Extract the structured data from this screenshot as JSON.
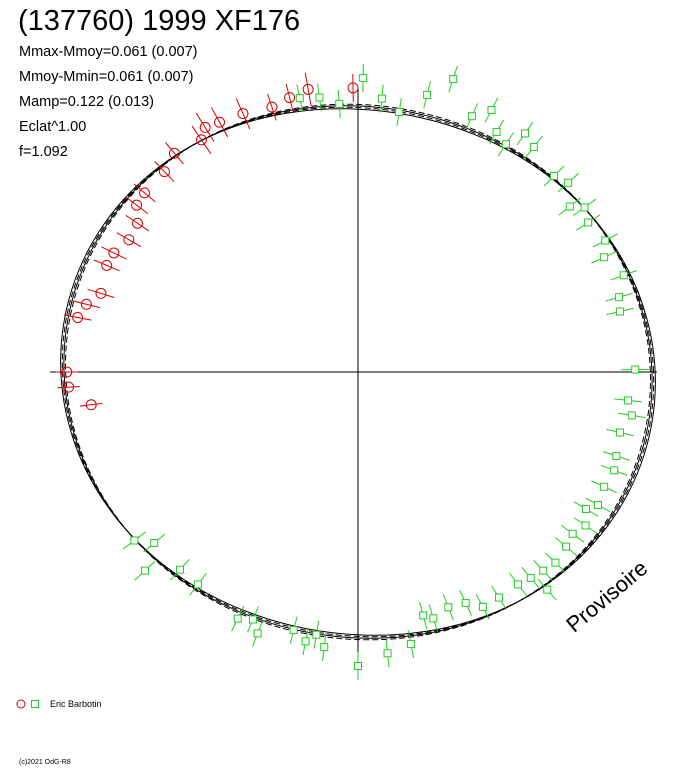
{
  "title": "(137760) 1999 XF176",
  "stats": [
    "Mmax-Mmoy=0.061 (0.007)",
    "Mmoy-Mmin=0.061 (0.007)",
    "Mamp=0.122 (0.013)",
    "Eclat^1.00",
    "f=1.092"
  ],
  "watermark": "Provisoire",
  "legend": {
    "label": "Eric Barbotin"
  },
  "footer": "(c)2021 OdG-R8",
  "colors": {
    "red": "#d40000",
    "green": "#22cc22",
    "axis": "#000000"
  },
  "chart_data": {
    "type": "scatter",
    "coordinate_system": "polar",
    "title": "(137760) 1999 XF176",
    "angle_unit": "deg",
    "model_curves": [
      {
        "style": "solid",
        "amplitude": 0.061
      },
      {
        "style": "dashed",
        "amplitude": 0.054
      },
      {
        "style": "dashed",
        "amplitude": 0.068
      },
      {
        "style": "solid",
        "amplitude": 0.075
      }
    ],
    "series": [
      {
        "name": "Eric Barbotin",
        "marker": "circle",
        "color": "#d40000",
        "points": [
          {
            "a": 91,
            "r": 1.015,
            "e": 0.05
          },
          {
            "a": 100,
            "r": 1.025,
            "e": 0.06
          },
          {
            "a": 104,
            "r": 1.01,
            "e": 0.05
          },
          {
            "a": 108,
            "r": 0.995,
            "e": 0.05
          },
          {
            "a": 114,
            "r": 1.01,
            "e": 0.06
          },
          {
            "a": 119,
            "r": 1.02,
            "e": 0.06
          },
          {
            "a": 122,
            "r": 1.03,
            "e": 0.06
          },
          {
            "a": 124,
            "r": 1.0,
            "e": 0.06
          },
          {
            "a": 130,
            "r": 1.02,
            "e": 0.05
          },
          {
            "a": 134,
            "r": 0.995,
            "e": 0.05
          },
          {
            "a": 140,
            "r": 0.995,
            "e": 0.05
          },
          {
            "a": 143,
            "r": 0.99,
            "e": 0.05
          },
          {
            "a": 146,
            "r": 0.95,
            "e": 0.05
          },
          {
            "a": 150,
            "r": 0.945,
            "e": 0.05
          },
          {
            "a": 154,
            "r": 0.97,
            "e": 0.05
          },
          {
            "a": 157,
            "r": 0.975,
            "e": 0.05
          },
          {
            "a": 163,
            "r": 0.96,
            "e": 0.05
          },
          {
            "a": 166,
            "r": 1.0,
            "e": 0.05
          },
          {
            "a": 169,
            "r": 1.02,
            "e": 0.05
          },
          {
            "a": 180,
            "r": 1.04,
            "e": 0.04
          },
          {
            "a": 183,
            "r": 1.035,
            "e": 0.04
          },
          {
            "a": 187,
            "r": 0.96,
            "e": 0.04
          }
        ]
      },
      {
        "name": "Eric Barbotin",
        "marker": "square",
        "color": "#22cc22",
        "points": [
          {
            "a": 72,
            "r": 1.1,
            "e": 0.05
          },
          {
            "a": 76,
            "r": 1.02,
            "e": 0.05
          },
          {
            "a": 81,
            "r": 0.94,
            "e": 0.05
          },
          {
            "a": 85,
            "r": 0.98,
            "e": 0.05
          },
          {
            "a": 89,
            "r": 1.05,
            "e": 0.05
          },
          {
            "a": 94,
            "r": 0.96,
            "e": 0.05
          },
          {
            "a": 98,
            "r": 0.99,
            "e": 0.05
          },
          {
            "a": 102,
            "r": 1.0,
            "e": 0.05
          },
          {
            "a": 63,
            "r": 1.05,
            "e": 0.05
          },
          {
            "a": 66,
            "r": 1.0,
            "e": 0.05
          },
          {
            "a": 60,
            "r": 0.99,
            "e": 0.05
          },
          {
            "a": 55,
            "r": 1.04,
            "e": 0.05
          },
          {
            "a": 57,
            "r": 0.97,
            "e": 0.05
          },
          {
            "a": 52,
            "r": 1.02,
            "e": 0.05
          },
          {
            "a": 45,
            "r": 0.99,
            "e": 0.05
          },
          {
            "a": 42,
            "r": 1.01,
            "e": 0.05
          },
          {
            "a": 38,
            "r": 0.96,
            "e": 0.05
          },
          {
            "a": 36,
            "r": 1.0,
            "e": 0.05
          },
          {
            "a": 33,
            "r": 0.98,
            "e": 0.05
          },
          {
            "a": 28,
            "r": 1.0,
            "e": 0.05
          },
          {
            "a": 25,
            "r": 0.97,
            "e": 0.05
          },
          {
            "a": 20,
            "r": 1.01,
            "e": 0.05
          },
          {
            "a": 16,
            "r": 0.97,
            "e": 0.05
          },
          {
            "a": 13,
            "r": 0.96,
            "e": 0.05
          },
          {
            "a": 0.5,
            "r": 0.99,
            "e": 0.05
          },
          {
            "a": -6,
            "r": 0.97,
            "e": 0.05
          },
          {
            "a": -9,
            "r": 0.99,
            "e": 0.05
          },
          {
            "a": -13,
            "r": 0.96,
            "e": 0.05
          },
          {
            "a": -18,
            "r": 0.97,
            "e": 0.05
          },
          {
            "a": -21,
            "r": 0.98,
            "e": 0.05
          },
          {
            "a": -25,
            "r": 0.97,
            "e": 0.05
          },
          {
            "a": -29,
            "r": 0.98,
            "e": 0.05
          },
          {
            "a": -31,
            "r": 0.95,
            "e": 0.05
          },
          {
            "a": -34,
            "r": 0.98,
            "e": 0.05
          },
          {
            "a": -37,
            "r": 0.96,
            "e": 0.05
          },
          {
            "a": -40,
            "r": 0.97,
            "e": 0.05
          },
          {
            "a": -44,
            "r": 0.98,
            "e": 0.05
          },
          {
            "a": -47,
            "r": 0.97,
            "e": 0.05
          },
          {
            "a": -50,
            "r": 0.96,
            "e": 0.05
          },
          {
            "a": -49,
            "r": 1.03,
            "e": 0.05
          },
          {
            "a": -53,
            "r": 0.95,
            "e": 0.05
          },
          {
            "a": -58,
            "r": 0.95,
            "e": 0.05
          },
          {
            "a": -62,
            "r": 0.95,
            "e": 0.05
          },
          {
            "a": -65,
            "r": 0.91,
            "e": 0.05
          },
          {
            "a": -69,
            "r": 0.9,
            "e": 0.05
          },
          {
            "a": -73,
            "r": 0.92,
            "e": 0.05
          },
          {
            "a": -75,
            "r": 0.9,
            "e": 0.05
          },
          {
            "a": -79,
            "r": 0.99,
            "e": 0.05
          },
          {
            "a": -84,
            "r": 1.01,
            "e": 0.05
          },
          {
            "a": -90,
            "r": 1.05,
            "e": 0.05
          },
          {
            "a": -97,
            "r": 0.99,
            "e": 0.05
          },
          {
            "a": -99,
            "r": 0.95,
            "e": 0.05
          },
          {
            "a": -101,
            "r": 0.98,
            "e": 0.05
          },
          {
            "a": -104,
            "r": 0.95,
            "e": 0.05
          },
          {
            "a": -111,
            "r": 1.0,
            "e": 0.05
          },
          {
            "a": -113,
            "r": 0.96,
            "e": 0.05
          },
          {
            "a": -116,
            "r": 0.98,
            "e": 0.05
          },
          {
            "a": -127,
            "r": 0.95,
            "e": 0.05
          },
          {
            "a": -132,
            "r": 0.95,
            "e": 0.05
          },
          {
            "a": -137,
            "r": 1.04,
            "e": 0.05
          },
          {
            "a": -140,
            "r": 0.95,
            "e": 0.05
          },
          {
            "a": -143,
            "r": 1.0,
            "e": 0.05
          }
        ]
      }
    ]
  }
}
